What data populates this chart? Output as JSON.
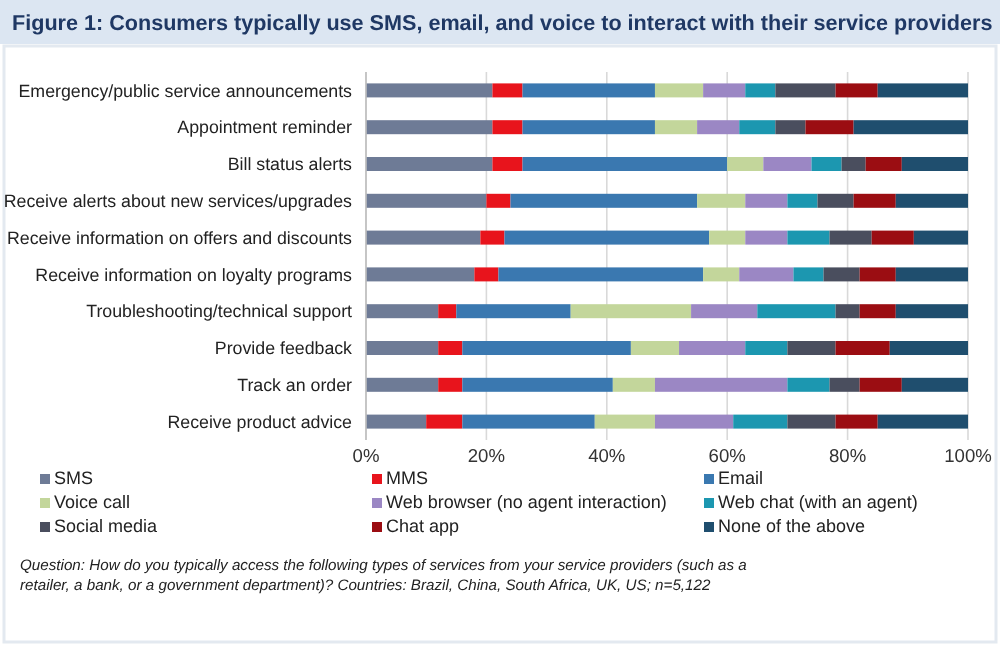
{
  "chart_data": {
    "type": "bar",
    "orientation": "horizontal",
    "stacked": true,
    "title": "Figure 1: Consumers typically use SMS, email, and voice to interact with their service providers",
    "categories": [
      "Emergency/public service announcements",
      "Appointment reminder",
      "Bill status alerts",
      "Receive alerts about new services/upgrades",
      "Receive information on offers and discounts",
      "Receive information on loyalty programs",
      "Troubleshooting/technical support",
      "Provide feedback",
      "Track an order",
      "Receive product advice"
    ],
    "series": [
      {
        "name": "SMS",
        "color": "#6e7b96",
        "values": [
          21,
          21,
          21,
          20,
          19,
          18,
          12,
          12,
          12,
          10
        ]
      },
      {
        "name": "MMS",
        "color": "#e8141c",
        "values": [
          5,
          5,
          5,
          4,
          4,
          4,
          3,
          4,
          4,
          6
        ]
      },
      {
        "name": "Email",
        "color": "#3a78b0",
        "values": [
          22,
          22,
          34,
          31,
          34,
          34,
          19,
          28,
          25,
          22
        ]
      },
      {
        "name": "Voice call",
        "color": "#c3d69b",
        "values": [
          8,
          7,
          6,
          8,
          6,
          6,
          20,
          8,
          7,
          10
        ]
      },
      {
        "name": "Web browser (no agent interaction)",
        "color": "#9b87c4",
        "values": [
          7,
          7,
          8,
          7,
          7,
          9,
          11,
          11,
          22,
          13
        ]
      },
      {
        "name": "Web chat (with an agent)",
        "color": "#1c97b0",
        "values": [
          5,
          6,
          5,
          5,
          7,
          5,
          13,
          7,
          7,
          9
        ]
      },
      {
        "name": "Social media",
        "color": "#4a4e5e",
        "values": [
          10,
          5,
          4,
          6,
          7,
          6,
          4,
          8,
          5,
          8
        ]
      },
      {
        "name": "Chat app",
        "color": "#9b0d12",
        "values": [
          7,
          8,
          6,
          7,
          7,
          6,
          6,
          9,
          7,
          7
        ]
      },
      {
        "name": "None of the above",
        "color": "#1f4e6e",
        "values": [
          15,
          19,
          11,
          12,
          9,
          12,
          12,
          13,
          11,
          15
        ]
      }
    ],
    "xlim": [
      0,
      100
    ],
    "xticks": [
      {
        "value": 0,
        "label": "0%"
      },
      {
        "value": 20,
        "label": "20%"
      },
      {
        "value": 40,
        "label": "40%"
      },
      {
        "value": 60,
        "label": "60%"
      },
      {
        "value": 80,
        "label": "80%"
      },
      {
        "value": 100,
        "label": "100%"
      }
    ],
    "grid": "x",
    "legend": "bottom",
    "annotations": [
      "Question: How do you typically access the following types of services from your service providers (such as a retailer, a bank, or a government department)? Countries: Brazil, China, South Africa, UK, US; n=5,122"
    ]
  }
}
